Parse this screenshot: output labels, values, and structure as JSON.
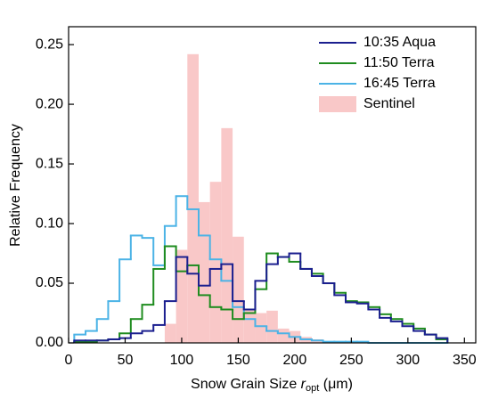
{
  "chart_data": {
    "type": "histogram",
    "xlabel": [
      "Snow Grain Size",
      "r",
      "opt",
      "(μm)"
    ],
    "ylabel": "Relative Frequency",
    "xlim": [
      0,
      360
    ],
    "ylim": [
      0,
      0.265
    ],
    "xticks": [
      0,
      50,
      100,
      150,
      200,
      250,
      300,
      350
    ],
    "yticks": [
      {
        "value": 0,
        "label": "0.00"
      },
      {
        "value": 0.05,
        "label": "0.05"
      },
      {
        "value": 0.1,
        "label": "0.10"
      },
      {
        "value": 0.15,
        "label": "0.15"
      },
      {
        "value": 0.2,
        "label": "0.20"
      },
      {
        "value": 0.25,
        "label": "0.25"
      }
    ],
    "legend": "upper right",
    "series": [
      {
        "name": "10:35 Aqua",
        "color": "#1b1f8f",
        "style": "step",
        "bins": [
          5,
          15,
          25,
          35,
          45,
          55,
          65,
          75,
          85,
          95,
          105,
          115,
          125,
          135,
          145,
          155,
          165,
          175,
          185,
          195,
          205,
          215,
          225,
          235,
          245,
          255,
          265,
          275,
          285,
          295,
          305,
          315,
          325,
          335
        ],
        "values": [
          0.002,
          0.002,
          0.002,
          0.003,
          0.004,
          0.008,
          0.01,
          0.015,
          0.035,
          0.072,
          0.058,
          0.048,
          0.062,
          0.066,
          0.035,
          0.028,
          0.052,
          0.066,
          0.072,
          0.075,
          0.062,
          0.056,
          0.05,
          0.04,
          0.034,
          0.033,
          0.028,
          0.021,
          0.018,
          0.014,
          0.01,
          0.007,
          0.004
        ]
      },
      {
        "name": "11:50 Terra",
        "color": "#1f8c1f",
        "style": "step",
        "bins": [
          5,
          15,
          25,
          35,
          45,
          55,
          65,
          75,
          85,
          95,
          105,
          115,
          125,
          135,
          145,
          155,
          165,
          175,
          185,
          195,
          205,
          215,
          225,
          235,
          245,
          255,
          265,
          275,
          285,
          295,
          305,
          315,
          325,
          335
        ],
        "values": [
          0.001,
          0.001,
          0.002,
          0.003,
          0.008,
          0.02,
          0.032,
          0.062,
          0.081,
          0.06,
          0.065,
          0.04,
          0.03,
          0.028,
          0.02,
          0.025,
          0.045,
          0.075,
          0.072,
          0.068,
          0.062,
          0.058,
          0.05,
          0.042,
          0.035,
          0.034,
          0.03,
          0.024,
          0.02,
          0.016,
          0.012,
          0.007,
          0.003
        ]
      },
      {
        "name": "16:45 Terra",
        "color": "#4bb3e6",
        "style": "step",
        "bins": [
          5,
          15,
          25,
          35,
          45,
          55,
          65,
          75,
          85,
          95,
          105,
          115,
          125,
          135,
          145,
          155,
          165,
          175,
          185,
          195,
          205,
          215,
          225,
          235,
          245,
          255,
          265,
          275,
          285,
          295,
          305,
          315,
          325,
          335
        ],
        "values": [
          0.007,
          0.01,
          0.02,
          0.035,
          0.07,
          0.09,
          0.088,
          0.065,
          0.098,
          0.123,
          0.112,
          0.09,
          0.07,
          0.052,
          0.03,
          0.02,
          0.014,
          0.01,
          0.008,
          0.005,
          0.003,
          0.002,
          0.001,
          0.001,
          0.001,
          0.001,
          0.0,
          0.0,
          0.0,
          0.0,
          0.0,
          0.0,
          0.0
        ]
      },
      {
        "name": "Sentinel",
        "color": "#f9c8c8",
        "style": "bar",
        "bins": [
          85,
          95,
          105,
          115,
          125,
          135,
          145,
          155,
          165,
          175,
          185,
          195,
          205,
          215,
          225
        ],
        "values": [
          0.016,
          0.078,
          0.242,
          0.118,
          0.135,
          0.18,
          0.089,
          0.028,
          0.025,
          0.027,
          0.012,
          0.01,
          0.005,
          0.003
        ]
      }
    ]
  }
}
